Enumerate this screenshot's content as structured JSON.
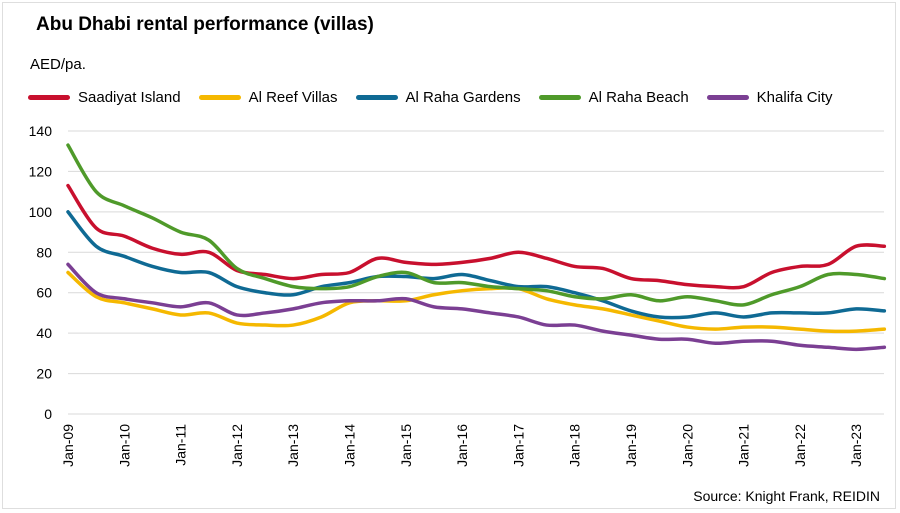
{
  "chart_data": {
    "type": "line",
    "title": "Abu Dhabi rental performance (villas)",
    "ylabel": "AED/pa.",
    "xlabel": "",
    "ylim": [
      0,
      140
    ],
    "yticks": [
      0,
      20,
      40,
      60,
      80,
      100,
      120,
      140
    ],
    "xtick_labels": [
      "Jan-09",
      "Jan-10",
      "Jan-11",
      "Jan-12",
      "Jan-13",
      "Jan-14",
      "Jan-15",
      "Jan-16",
      "Jan-17",
      "Jan-18",
      "Jan-19",
      "Jan-20",
      "Jan-21",
      "Jan-22",
      "Jan-23"
    ],
    "x": [
      "Jan-09",
      "Jul-09",
      "Jan-10",
      "Jul-10",
      "Jan-11",
      "Jul-11",
      "Jan-12",
      "Jul-12",
      "Jan-13",
      "Jul-13",
      "Jan-14",
      "Jul-14",
      "Jan-15",
      "Jul-15",
      "Jan-16",
      "Jul-16",
      "Jan-17",
      "Jul-17",
      "Jan-18",
      "Jul-18",
      "Jan-19",
      "Jul-19",
      "Jan-20",
      "Jul-20",
      "Jan-21",
      "Jul-21",
      "Jan-22",
      "Jul-22",
      "Jan-23",
      "Jul-23"
    ],
    "grid": true,
    "legend_position": "top",
    "series": [
      {
        "name": "Saadiyat Island",
        "color": "#c8102e",
        "values": [
          113,
          92,
          88,
          82,
          79,
          80,
          71,
          69,
          67,
          69,
          70,
          77,
          75,
          74,
          75,
          77,
          80,
          77,
          73,
          72,
          67,
          66,
          64,
          63,
          63,
          70,
          73,
          74,
          83,
          83
        ]
      },
      {
        "name": "Al Reef Villas",
        "color": "#f5b800",
        "values": [
          70,
          58,
          55,
          52,
          49,
          50,
          45,
          44,
          44,
          48,
          55,
          56,
          56,
          59,
          61,
          62,
          62,
          57,
          54,
          52,
          49,
          46,
          43,
          42,
          43,
          43,
          42,
          41,
          41,
          42
        ]
      },
      {
        "name": "Al Raha Gardens",
        "color": "#0f6a94",
        "values": [
          100,
          83,
          78,
          73,
          70,
          70,
          63,
          60,
          59,
          63,
          65,
          68,
          68,
          67,
          69,
          66,
          63,
          63,
          60,
          56,
          51,
          48,
          48,
          50,
          48,
          50,
          50,
          50,
          52,
          51
        ]
      },
      {
        "name": "Al Raha Beach",
        "color": "#4f9a2a",
        "values": [
          133,
          110,
          103,
          97,
          90,
          86,
          72,
          67,
          63,
          62,
          63,
          68,
          70,
          65,
          65,
          63,
          62,
          61,
          58,
          57,
          59,
          56,
          58,
          56,
          54,
          59,
          63,
          69,
          69,
          67
        ]
      },
      {
        "name": "Khalifa City",
        "color": "#7b3f93",
        "values": [
          74,
          60,
          57,
          55,
          53,
          55,
          49,
          50,
          52,
          55,
          56,
          56,
          57,
          53,
          52,
          50,
          48,
          44,
          44,
          41,
          39,
          37,
          37,
          35,
          36,
          36,
          34,
          33,
          32,
          33
        ]
      }
    ]
  },
  "header": {
    "title": "Abu Dhabi rental performance (villas)",
    "unit": "AED/pa."
  },
  "legend": {
    "items": [
      {
        "label": "Saadiyat Island",
        "color": "#c8102e"
      },
      {
        "label": "Al Reef Villas",
        "color": "#f5b800"
      },
      {
        "label": "Al Raha Gardens",
        "color": "#0f6a94"
      },
      {
        "label": "Al Raha Beach",
        "color": "#4f9a2a"
      },
      {
        "label": "Khalifa City",
        "color": "#7b3f93"
      }
    ]
  },
  "footer": {
    "source": "Source: Knight Frank, REIDIN"
  }
}
